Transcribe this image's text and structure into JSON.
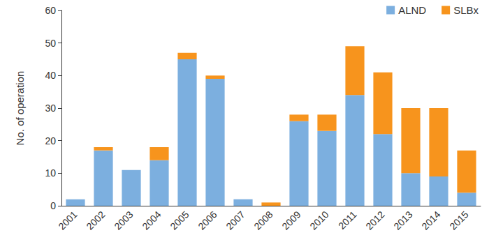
{
  "chart_data": {
    "type": "bar",
    "stacked": true,
    "grid": false,
    "legend": "upper right",
    "ylabel": "No. of operation",
    "categories": [
      "2001",
      "2002",
      "2003",
      "2004",
      "2005",
      "2006",
      "2007",
      "2008",
      "2009",
      "2010",
      "2011",
      "2012",
      "2013",
      "2014",
      "2015"
    ],
    "series": [
      {
        "name": "ALND",
        "color": "#7cafdf",
        "values": [
          2,
          17,
          11,
          14,
          45,
          39,
          2,
          0,
          26,
          23,
          34,
          22,
          10,
          9,
          4
        ]
      },
      {
        "name": "SLBx",
        "color": "#f7941d",
        "values": [
          0,
          1,
          0,
          4,
          2,
          1,
          0,
          1,
          2,
          5,
          15,
          19,
          20,
          21,
          13
        ]
      }
    ],
    "ylim": [
      0,
      60
    ],
    "yticks": [
      0,
      10,
      20,
      30,
      40,
      50,
      60
    ]
  }
}
